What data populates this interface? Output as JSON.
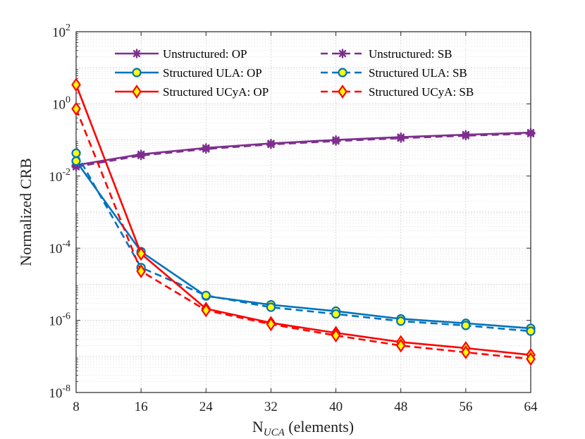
{
  "chart_data": {
    "type": "line",
    "title": "",
    "xlabel": {
      "base": "N",
      "sub": "UCA",
      "rest": " (elements)"
    },
    "ylabel": "Normalized CRB",
    "x": [
      8,
      16,
      24,
      32,
      40,
      48,
      56,
      64
    ],
    "xticks": [
      "8",
      "16",
      "24",
      "32",
      "40",
      "48",
      "56",
      "64"
    ],
    "xlim": [
      8,
      64
    ],
    "yscale": "log",
    "ylim": [
      1e-08,
      100
    ],
    "yticks": [
      {
        "value": 100,
        "base": "10",
        "exp": "2"
      },
      {
        "value": 1,
        "base": "10",
        "exp": "0"
      },
      {
        "value": 0.01,
        "base": "10",
        "exp": "-2"
      },
      {
        "value": 0.0001,
        "base": "10",
        "exp": "-4"
      },
      {
        "value": 1e-06,
        "base": "10",
        "exp": "-6"
      },
      {
        "value": 1e-08,
        "base": "10",
        "exp": "-8"
      }
    ],
    "grid": true,
    "legend_position": "top",
    "series": [
      {
        "name": "Unstructured: OP",
        "color": "#7E2F8E",
        "dash": "solid",
        "marker": "asterisk",
        "values": [
          0.02,
          0.04,
          0.06,
          0.08,
          0.1,
          0.12,
          0.14,
          0.16
        ]
      },
      {
        "name": "Unstructured: SB",
        "color": "#7E2F8E",
        "dash": "dashed",
        "marker": "asterisk",
        "values": [
          0.018,
          0.037,
          0.056,
          0.075,
          0.093,
          0.112,
          0.131,
          0.149
        ]
      },
      {
        "name": "Structured ULA: OP",
        "color": "#0072BD",
        "dash": "solid",
        "marker": "circle",
        "values": [
          0.026,
          8e-05,
          4.7e-06,
          2.7e-06,
          1.8e-06,
          1.1e-06,
          8.3e-07,
          6e-07
        ]
      },
      {
        "name": "Structured ULA: SB",
        "color": "#0072BD",
        "dash": "dashed",
        "marker": "circle",
        "values": [
          0.043,
          2.9e-05,
          4.9e-06,
          2.3e-06,
          1.5e-06,
          9.5e-07,
          7.2e-07,
          5e-07
        ]
      },
      {
        "name": "Structured UCyA: OP",
        "color": "#FF0000",
        "dash": "solid",
        "marker": "diamond",
        "values": [
          3.4,
          7e-05,
          2.1e-06,
          8.5e-07,
          4.5e-07,
          2.5e-07,
          1.7e-07,
          1.1e-07
        ]
      },
      {
        "name": "Structured UCyA: SB",
        "color": "#FF0000",
        "dash": "dashed",
        "marker": "diamond",
        "values": [
          0.73,
          2.3e-05,
          1.9e-06,
          7.8e-07,
          3.8e-07,
          2e-07,
          1.3e-07,
          8.5e-08
        ]
      }
    ]
  }
}
